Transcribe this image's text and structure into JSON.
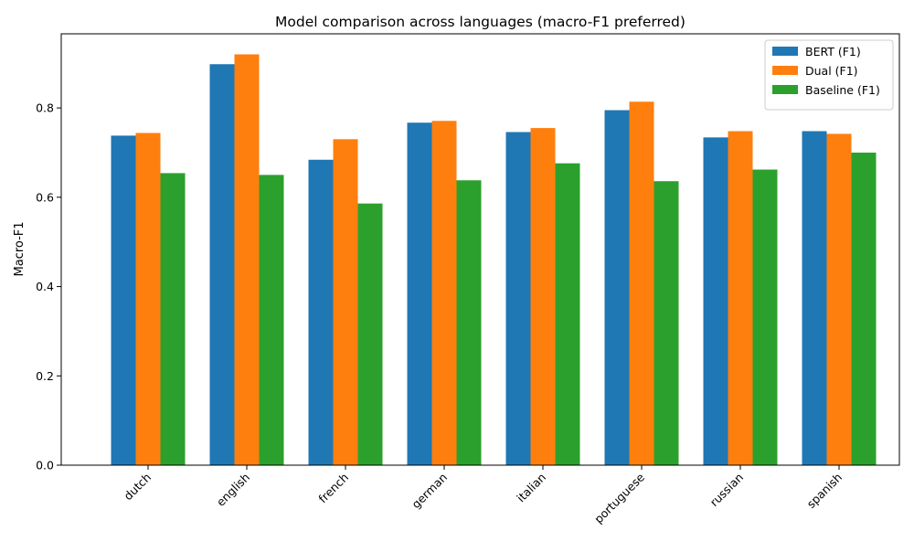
{
  "chart_data": {
    "type": "bar",
    "title": "Model comparison across languages (macro-F1 preferred)",
    "xlabel": "",
    "ylabel": "Macro-F1",
    "ylim": [
      0,
      0.966
    ],
    "yticks": [
      "0.0",
      "0.2",
      "0.4",
      "0.6",
      "0.8"
    ],
    "grid": false,
    "legend_position": "top-right",
    "categories": [
      "dutch",
      "english",
      "french",
      "german",
      "italian",
      "portuguese",
      "russian",
      "spanish"
    ],
    "series": [
      {
        "name": "BERT (F1)",
        "color": "#1f77b4",
        "values": [
          0.738,
          0.898,
          0.684,
          0.767,
          0.746,
          0.795,
          0.734,
          0.748
        ]
      },
      {
        "name": "Dual (F1)",
        "color": "#ff7f0e",
        "values": [
          0.744,
          0.92,
          0.73,
          0.771,
          0.755,
          0.814,
          0.748,
          0.742
        ]
      },
      {
        "name": "Baseline (F1)",
        "color": "#2ca02c",
        "values": [
          0.654,
          0.65,
          0.586,
          0.638,
          0.676,
          0.636,
          0.662,
          0.7
        ]
      }
    ]
  }
}
